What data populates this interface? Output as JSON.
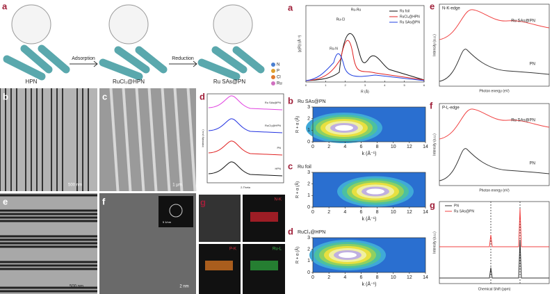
{
  "schematic": {
    "label": "a",
    "stages": [
      "HPN",
      "RuCl₃@HPN",
      "Ru SAs@PN"
    ],
    "arrows": [
      "Adsorption",
      "Reduction"
    ],
    "legend": [
      "N",
      "P",
      "Cl",
      "Ru"
    ]
  },
  "tem_b": {
    "label": "b",
    "scale": "500 nm"
  },
  "sem_c": {
    "label": "c",
    "scale": "1 μm"
  },
  "xrd_d": {
    "label": "d",
    "curves": [
      "Ru SAs@PN",
      "RuCl₃@HPN",
      "PN",
      "HPN"
    ],
    "x_label": "2-Theta",
    "y_label": "Intensity (a.u.)"
  },
  "tem_e": {
    "label": "e",
    "scale": "500 nm"
  },
  "hrtem_f": {
    "label": "f",
    "scale": "2 nm",
    "inset_scale": "5 1/nm"
  },
  "mapping_g": {
    "label": "g",
    "elements": [
      "N-K",
      "P-K",
      "Ru-L"
    ]
  },
  "exafs_a": {
    "label": "a",
    "legend": [
      "Ru foil",
      "RuCl₃@HPN",
      "Ru SAs@PN"
    ],
    "peaks": [
      "Ru-Ru",
      "Ru-Cl",
      "Ru-N"
    ],
    "x_label": "R (Å)",
    "y_label": "|χ(R)| (Å⁻³)",
    "x_ticks": [
      0,
      1,
      2,
      3,
      4,
      5,
      6
    ]
  },
  "wavelets": [
    {
      "label": "b",
      "sample": "Ru SAs@PN"
    },
    {
      "label": "c",
      "sample": "Ru foil"
    },
    {
      "label": "d",
      "sample": "RuCl₃@HPN"
    }
  ],
  "wavelet_axes": {
    "x_label": "k (Å⁻¹)",
    "y_label": "R + α (Å)",
    "x_ticks": [
      0,
      2,
      4,
      6,
      8,
      10,
      12,
      14
    ],
    "y_ticks": [
      0,
      1,
      2,
      3
    ]
  },
  "xanes_e": {
    "label": "e",
    "edge": "N-K-edge",
    "curves": [
      "Ru SAs@PN",
      "PN"
    ],
    "x_label": "Photon energy (eV)",
    "y_label": "Intensity (a.u.)"
  },
  "xanes_f": {
    "label": "f",
    "edge": "P-L-edge",
    "curves": [
      "Ru SAs@PN",
      "PN"
    ],
    "x_label": "Photon energy (eV)",
    "y_label": "Intensity (a.u.)"
  },
  "nmr_g": {
    "label": "g",
    "legend": [
      "PN",
      "Ru SAs@PN"
    ],
    "x_label": "Chemical Shift (ppm)",
    "y_label": "Intensity (a.u.)"
  }
}
